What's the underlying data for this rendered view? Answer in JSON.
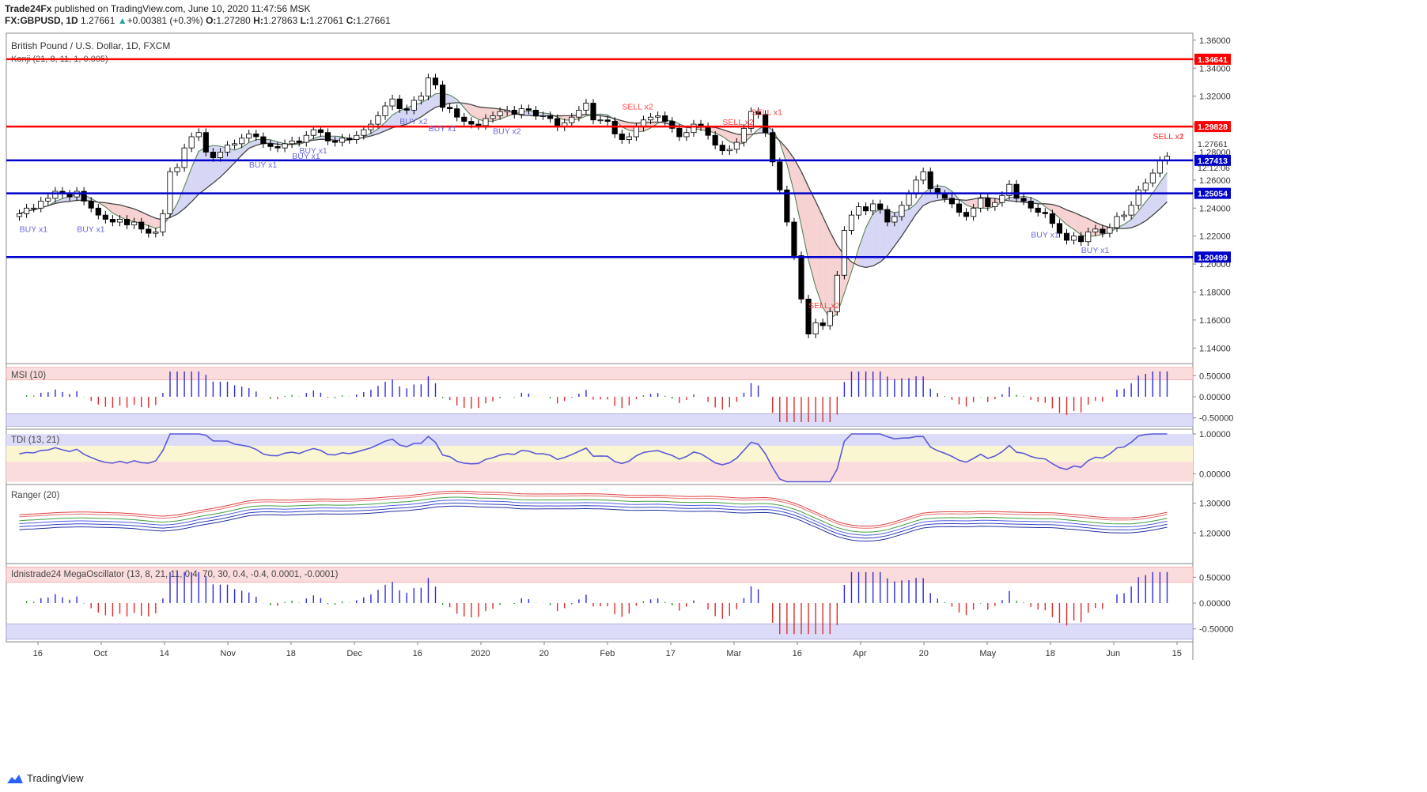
{
  "header": {
    "publisher": "Trade24Fx",
    "published_text": "published on TradingView.com, June 10, 2020 11:47:56 MSK",
    "symbol": "FX:GBPUSD, 1D",
    "last": "1.27661",
    "change_arrow": "▲",
    "change": "+0.00381 (+0.3%)",
    "o_label": "O:",
    "o_value": "1.27280",
    "h_label": "H:",
    "h_value": "1.27863",
    "l_label": "L:",
    "l_value": "1.27061",
    "c_label": "C:",
    "c_value": "1.27661"
  },
  "footer": {
    "brand": "TradingView",
    "logo_icon": "tradingview-logo-icon"
  },
  "chart_data": {
    "type": "candlestick",
    "title": "British Pound / U.S. Dollar, 1D, FXCM",
    "overlay_label": "Konji (21, 8, 11, 1, 0.005)",
    "price_ylim": [
      1.13,
      1.365
    ],
    "price_ticks": [
      "1.36000",
      "1.34000",
      "1.32000",
      "1.30000",
      "1.28000",
      "1.26000",
      "1.24000",
      "1.22000",
      "1.20000",
      "1.18000",
      "1.16000",
      "1.14000"
    ],
    "x_ticks": [
      "16",
      "Oct",
      "14",
      "Nov",
      "18",
      "Dec",
      "16",
      "2020",
      "20",
      "Feb",
      "17",
      "Mar",
      "16",
      "Apr",
      "20",
      "May",
      "18",
      "Jun",
      "15"
    ],
    "colors": {
      "up": "#ffffff",
      "down": "#000000",
      "resistance": "#ff0000",
      "support": "#0000cc",
      "buy": "#6a6adf",
      "sell": "#ff4444"
    },
    "horizontal_levels": [
      {
        "value": 1.34641,
        "label": "1.34641",
        "color": "#ff0000"
      },
      {
        "value": 1.29828,
        "label": "1.29828",
        "color": "#ff0000"
      },
      {
        "value": 1.27413,
        "label": "1.27413",
        "color": "#0000cc"
      },
      {
        "value": 1.25054,
        "label": "1.25054",
        "color": "#0000cc"
      },
      {
        "value": 1.20499,
        "label": "1.20499",
        "color": "#0000cc"
      }
    ],
    "price_labels": {
      "last": "1.27661",
      "countdown": "12:12:06"
    },
    "close_series": [
      1.236,
      1.24,
      1.24,
      1.245,
      1.247,
      1.252,
      1.25,
      1.248,
      1.252,
      1.245,
      1.24,
      1.235,
      1.232,
      1.23,
      1.232,
      1.228,
      1.23,
      1.225,
      1.222,
      1.223,
      1.236,
      1.266,
      1.269,
      1.283,
      1.291,
      1.294,
      1.28,
      1.276,
      1.28,
      1.285,
      1.286,
      1.29,
      1.293,
      1.291,
      1.286,
      1.284,
      1.283,
      1.286,
      1.288,
      1.287,
      1.292,
      1.296,
      1.294,
      1.288,
      1.287,
      1.29,
      1.289,
      1.292,
      1.296,
      1.3,
      1.306,
      1.313,
      1.318,
      1.311,
      1.31,
      1.317,
      1.32,
      1.333,
      1.328,
      1.312,
      1.311,
      1.305,
      1.302,
      1.3,
      1.299,
      1.304,
      1.306,
      1.309,
      1.31,
      1.307,
      1.311,
      1.31,
      1.306,
      1.306,
      1.304,
      1.298,
      1.301,
      1.305,
      1.31,
      1.315,
      1.303,
      1.303,
      1.302,
      1.293,
      1.289,
      1.291,
      1.298,
      1.303,
      1.305,
      1.306,
      1.302,
      1.297,
      1.291,
      1.294,
      1.3,
      1.298,
      1.292,
      1.285,
      1.281,
      1.282,
      1.287,
      1.297,
      1.309,
      1.307,
      1.294,
      1.273,
      1.253,
      1.23,
      1.206,
      1.175,
      1.15,
      1.158,
      1.156,
      1.166,
      1.192,
      1.224,
      1.235,
      1.241,
      1.238,
      1.243,
      1.239,
      1.23,
      1.234,
      1.242,
      1.25,
      1.26,
      1.266,
      1.254,
      1.25,
      1.247,
      1.243,
      1.237,
      1.234,
      1.24,
      1.247,
      1.241,
      1.244,
      1.249,
      1.257,
      1.247,
      1.245,
      1.24,
      1.237,
      1.236,
      1.229,
      1.222,
      1.217,
      1.22,
      1.216,
      1.223,
      1.225,
      1.222,
      1.226,
      1.234,
      1.235,
      1.242,
      1.253,
      1.258,
      1.265,
      1.274,
      1.277
    ],
    "signals": [
      {
        "text": "BUY x1",
        "color": "#6a6adf"
      },
      {
        "text": "BUY x1",
        "color": "#6a6adf"
      },
      {
        "text": "BUY x1",
        "color": "#6a6adf"
      },
      {
        "text": "BUY x1",
        "color": "#6a6adf"
      },
      {
        "text": "BUY x1",
        "color": "#6a6adf"
      },
      {
        "text": "BUY x2",
        "color": "#6a6adf"
      },
      {
        "text": "BUY x1",
        "color": "#6a6adf"
      },
      {
        "text": "BUY x2",
        "color": "#6a6adf"
      },
      {
        "text": "SELL x2",
        "color": "#ff4444"
      },
      {
        "text": "SELL x2",
        "color": "#ff4444"
      },
      {
        "text": "SELL x1",
        "color": "#ff4444"
      },
      {
        "text": "SELL x2",
        "color": "#ff4444"
      },
      {
        "text": "BUY x1",
        "color": "#6a6adf"
      },
      {
        "text": "BUY x1",
        "color": "#6a6adf"
      },
      {
        "text": "SELL x2",
        "color": "#ff4444"
      },
      {
        "text": "SELL x1",
        "color": "#ff4444"
      }
    ],
    "panels": [
      {
        "name": "MSI (10)",
        "ticks": [
          "0.50000",
          "0.00000",
          "-0.50000"
        ]
      },
      {
        "name": "TDI (13, 21)",
        "ticks": [
          "1.00000",
          "0.00000"
        ]
      },
      {
        "name": "Ranger (20)",
        "ticks": [
          "1.30000",
          "1.20000"
        ]
      },
      {
        "name": "Idnistrade24 MegaOscillator (13, 8, 21, 11, 0.4, 70, 30, 0.4, -0.4, 0.0001, -0.0001)",
        "ticks": [
          "0.50000",
          "0.00000",
          "-0.50000"
        ]
      }
    ]
  }
}
